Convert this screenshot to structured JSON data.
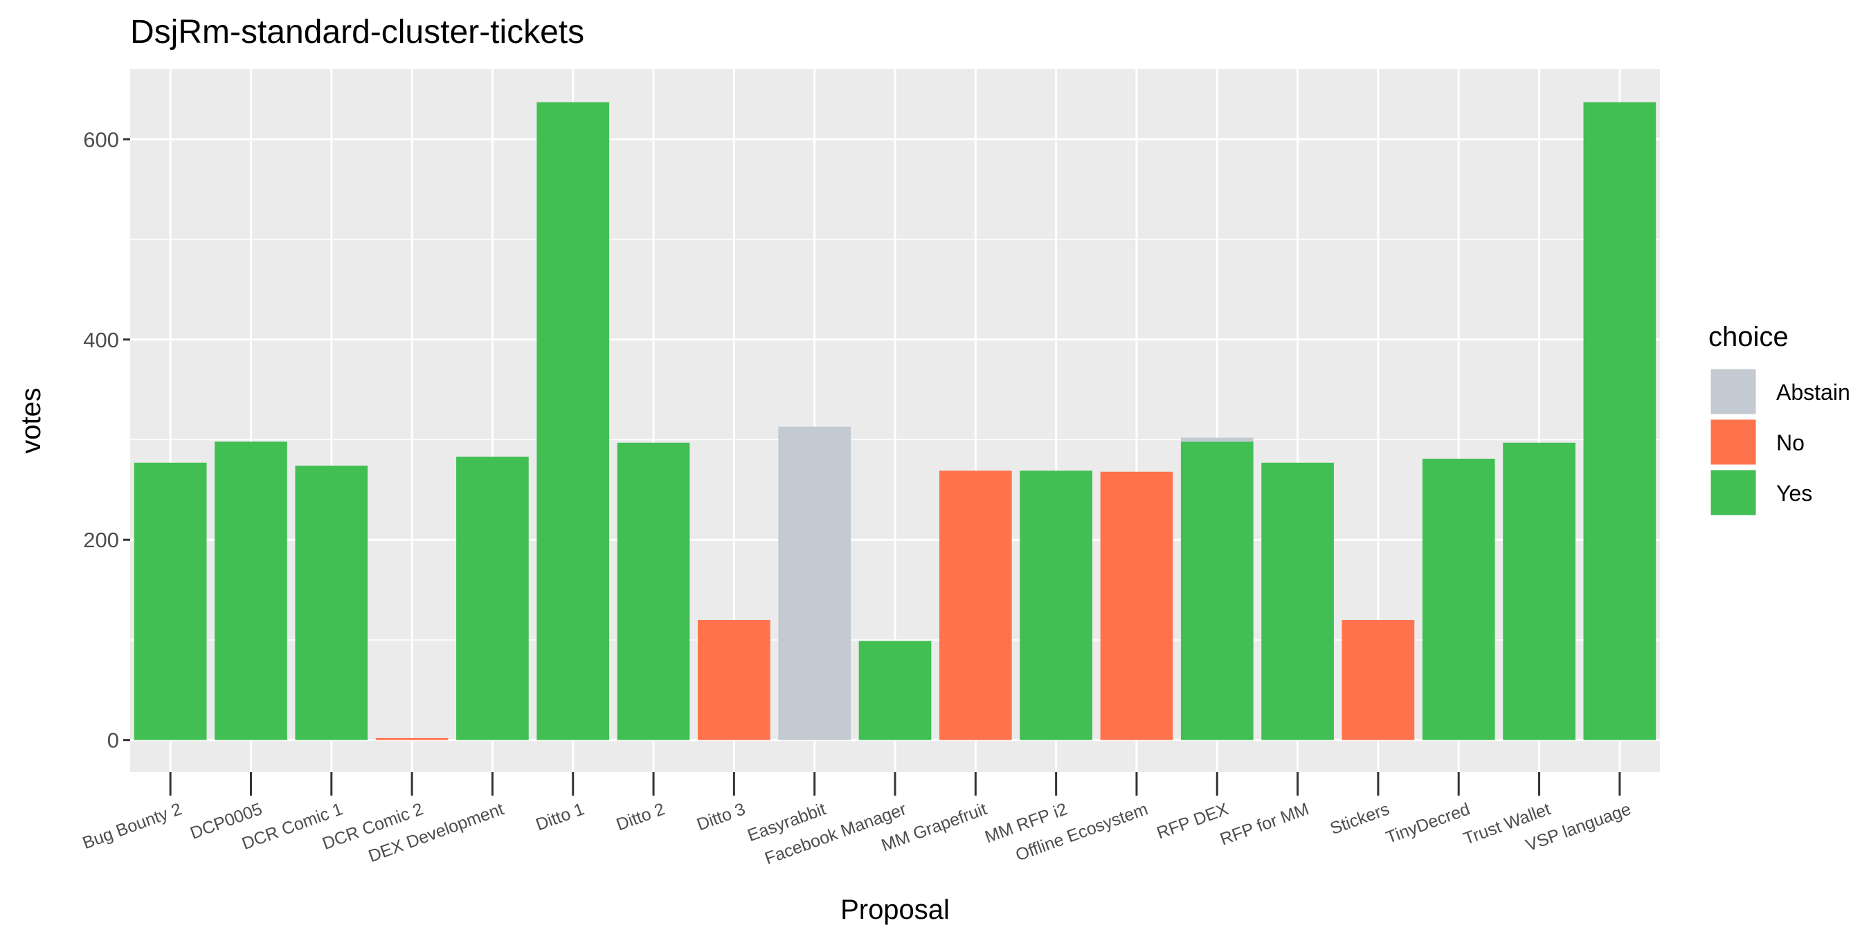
{
  "chart_data": {
    "type": "bar",
    "stacked": true,
    "title": "DsjRm-standard-cluster-tickets",
    "xlabel": "Proposal",
    "ylabel": "votes",
    "ylim": [
      -32,
      670
    ],
    "yticks": [
      0,
      200,
      400,
      600
    ],
    "grid": true,
    "legend": {
      "title": "choice",
      "position": "right",
      "entries": [
        "Abstain",
        "No",
        "Yes"
      ]
    },
    "colors": {
      "Abstain": "#c4cad2",
      "No": "#ff734c",
      "Yes": "#41bf53"
    },
    "categories": [
      "Bug Bounty 2",
      "DCP0005",
      "DCR Comic 1",
      "DCR Comic 2",
      "DEX Development",
      "Ditto 1",
      "Ditto 2",
      "Ditto 3",
      "Easyrabbit",
      "Facebook Manager",
      "MM Grapefruit",
      "MM RFP i2",
      "Offline Ecosystem",
      "RFP DEX",
      "RFP for MM",
      "Stickers",
      "TinyDecred",
      "Trust Wallet",
      "VSP language"
    ],
    "series": [
      {
        "name": "Abstain",
        "values": [
          0,
          0,
          0,
          0,
          0,
          0,
          0,
          0,
          313,
          0,
          0,
          0,
          0,
          4,
          0,
          0,
          0,
          0,
          0
        ]
      },
      {
        "name": "No",
        "values": [
          0,
          0,
          0,
          2,
          0,
          0,
          0,
          120,
          0,
          0,
          269,
          0,
          268,
          0,
          0,
          120,
          0,
          0,
          0
        ]
      },
      {
        "name": "Yes",
        "values": [
          277,
          298,
          274,
          0,
          283,
          637,
          297,
          0,
          0,
          99,
          0,
          269,
          0,
          298,
          277,
          0,
          281,
          297,
          637
        ]
      }
    ]
  }
}
